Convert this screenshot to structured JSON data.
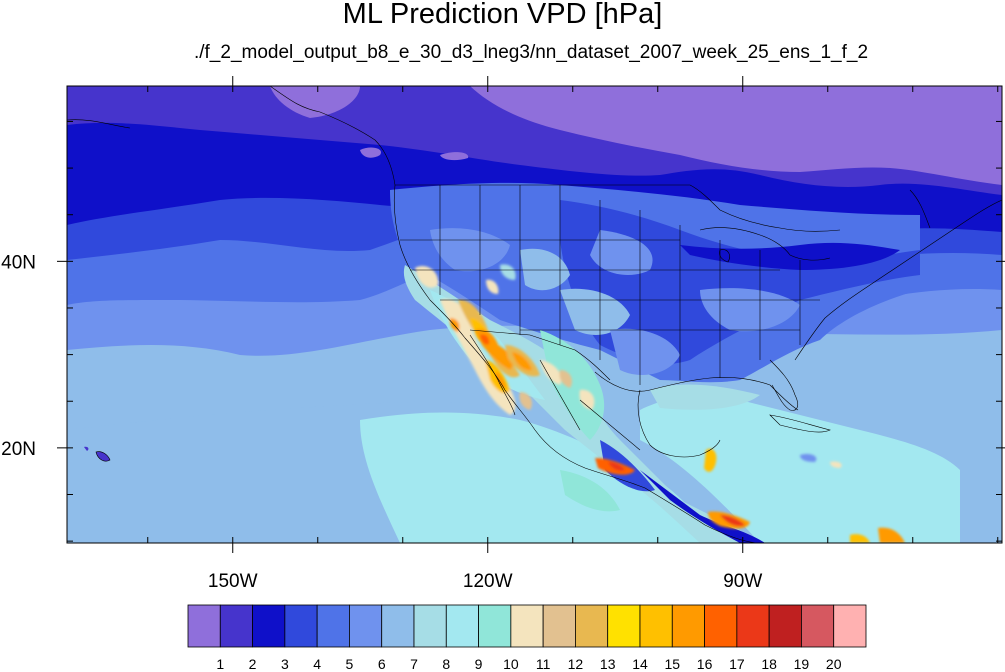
{
  "title": "ML Prediction VPD [hPa]",
  "subtitle": "./f_2_model_output_b8_e_30_d3_lneg3/nn_dataset_2007_week_25_ens_1_f_2",
  "map": {
    "lon_range": [
      -169.5,
      -59.5
    ],
    "lat_range": [
      9.8,
      58.8
    ],
    "x_ticks": [
      {
        "value": -150,
        "label": "150W"
      },
      {
        "value": -120,
        "label": "120W"
      },
      {
        "value": -90,
        "label": "90W"
      }
    ],
    "y_ticks": [
      {
        "value": 20,
        "label": "20N"
      },
      {
        "value": 40,
        "label": "40N"
      }
    ]
  },
  "colorbar": {
    "labels": [
      "1",
      "2",
      "3",
      "4",
      "5",
      "6",
      "7",
      "8",
      "9",
      "10",
      "11",
      "12",
      "13",
      "14",
      "15",
      "16",
      "17",
      "18",
      "19",
      "20"
    ],
    "colors": [
      "#8f6fdb",
      "#4634cc",
      "#0f10c9",
      "#3049dc",
      "#4f73e8",
      "#6f92ee",
      "#8fbdea",
      "#a6dde6",
      "#a3e8f0",
      "#90e6d9",
      "#f4e4be",
      "#e2c190",
      "#e8b850",
      "#ffe100",
      "#ffc000",
      "#ff9a00",
      "#ff6100",
      "#eb3818",
      "#bf2020",
      "#d65860",
      "#ffb1b1"
    ]
  }
}
